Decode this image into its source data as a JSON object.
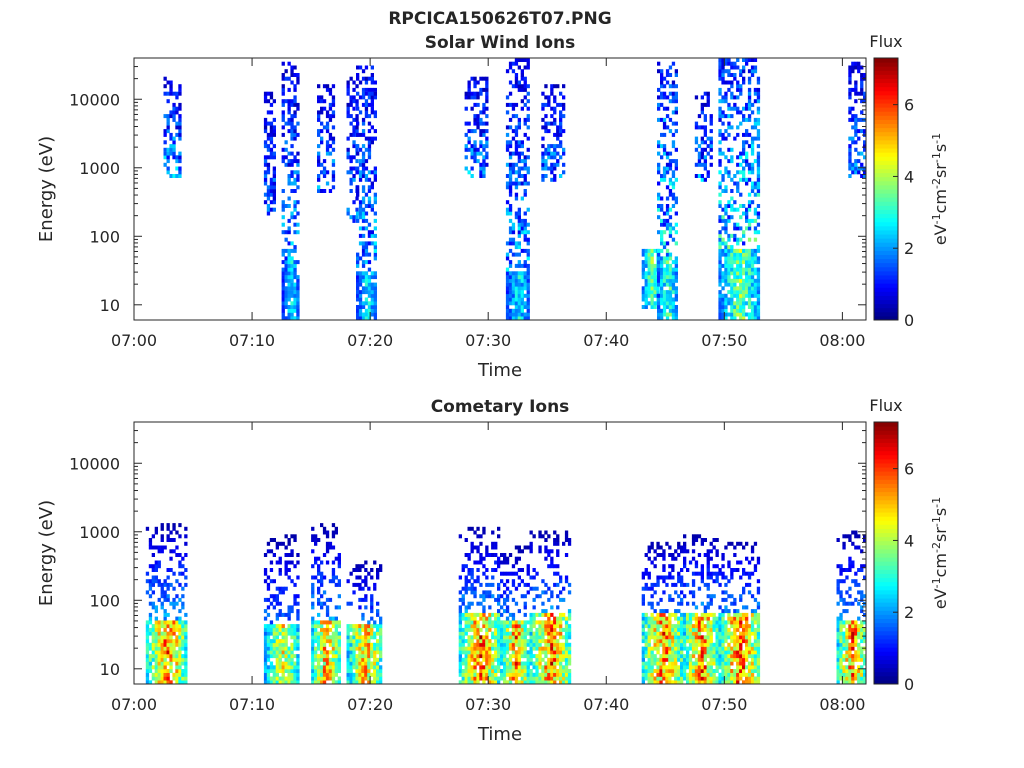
{
  "figure_title": "RPCICA150626T07.PNG",
  "chart_data": [
    {
      "type": "heatmap",
      "title": "Solar Wind Ions",
      "xlabel": "Time",
      "ylabel": "Energy (eV)",
      "yscale": "log",
      "ylim": [
        6,
        40000
      ],
      "xlim": [
        "07:00",
        "08:02"
      ],
      "xticks": [
        "07:00",
        "07:10",
        "07:20",
        "07:30",
        "07:40",
        "07:50",
        "08:00"
      ],
      "yticks": [
        "10",
        "100",
        "1000",
        "10000"
      ],
      "colorbar": {
        "title": "Flux",
        "label": "eV-1cm-2sr-1s-1",
        "range": [
          0,
          7.3
        ],
        "ticks": [
          "0",
          "2",
          "4",
          "6"
        ],
        "colormap": "jet"
      },
      "clusters": [
        {
          "t_start": "07:02.5",
          "t_end": "07:04",
          "e_min": 700,
          "e_max": 20000,
          "max_flux": 3.0,
          "hot_below": 0
        },
        {
          "t_start": "07:11",
          "t_end": "07:12",
          "e_min": 200,
          "e_max": 12000,
          "max_flux": 2.4,
          "hot_below": 0
        },
        {
          "t_start": "07:12.5",
          "t_end": "07:14",
          "e_min": 6,
          "e_max": 35000,
          "max_flux": 3.2,
          "hot_below": 40
        },
        {
          "t_start": "07:15.5",
          "t_end": "07:17",
          "e_min": 400,
          "e_max": 15000,
          "max_flux": 2.8,
          "hot_below": 0
        },
        {
          "t_start": "07:18",
          "t_end": "07:19",
          "e_min": 150,
          "e_max": 20000,
          "max_flux": 2.6,
          "hot_below": 0
        },
        {
          "t_start": "07:18.8",
          "t_end": "07:20.5",
          "e_min": 6,
          "e_max": 30000,
          "max_flux": 3.4,
          "hot_below": 30
        },
        {
          "t_start": "07:28",
          "t_end": "07:30",
          "e_min": 700,
          "e_max": 20000,
          "max_flux": 2.8,
          "hot_below": 0
        },
        {
          "t_start": "07:31.5",
          "t_end": "07:33.5",
          "e_min": 6,
          "e_max": 40000,
          "max_flux": 3.4,
          "hot_below": 30
        },
        {
          "t_start": "07:34.5",
          "t_end": "07:36.5",
          "e_min": 600,
          "e_max": 15000,
          "max_flux": 2.8,
          "hot_below": 0
        },
        {
          "t_start": "07:43",
          "t_end": "07:44.5",
          "e_min": 8,
          "e_max": 60,
          "max_flux": 4.6,
          "hot_below": 60
        },
        {
          "t_start": "07:44.3",
          "t_end": "07:46",
          "e_min": 6,
          "e_max": 35000,
          "max_flux": 4.2,
          "hot_below": 50
        },
        {
          "t_start": "07:47.5",
          "t_end": "07:49",
          "e_min": 600,
          "e_max": 12000,
          "max_flux": 2.8,
          "hot_below": 0
        },
        {
          "t_start": "07:49.5",
          "t_end": "07:53",
          "e_min": 6,
          "e_max": 40000,
          "max_flux": 4.6,
          "hot_below": 60
        },
        {
          "t_start": "08:00.5",
          "t_end": "08:02",
          "e_min": 700,
          "e_max": 35000,
          "max_flux": 2.8,
          "hot_below": 0
        }
      ]
    },
    {
      "type": "heatmap",
      "title": "Cometary Ions",
      "xlabel": "Time",
      "ylabel": "Energy (eV)",
      "yscale": "log",
      "ylim": [
        6,
        40000
      ],
      "xlim": [
        "07:00",
        "08:02"
      ],
      "xticks": [
        "07:00",
        "07:10",
        "07:20",
        "07:30",
        "07:40",
        "07:50",
        "08:00"
      ],
      "yticks": [
        "10",
        "100",
        "1000",
        "10000"
      ],
      "colorbar": {
        "title": "Flux",
        "label": "eV-1cm-2sr-1s-1",
        "range": [
          0,
          7.3
        ],
        "ticks": [
          "0",
          "2",
          "4",
          "6"
        ],
        "colormap": "jet"
      },
      "clusters": [
        {
          "t_start": "07:01",
          "t_end": "07:04.5",
          "e_min": 6,
          "e_max": 1300,
          "max_flux": 7.0,
          "hot_below": 50
        },
        {
          "t_start": "07:11",
          "t_end": "07:14",
          "e_min": 6,
          "e_max": 900,
          "max_flux": 5.8,
          "hot_below": 40
        },
        {
          "t_start": "07:15",
          "t_end": "07:17.5",
          "e_min": 6,
          "e_max": 1300,
          "max_flux": 6.8,
          "hot_below": 50
        },
        {
          "t_start": "07:18",
          "t_end": "07:21",
          "e_min": 6,
          "e_max": 350,
          "max_flux": 6.6,
          "hot_below": 40
        },
        {
          "t_start": "07:27.5",
          "t_end": "07:31",
          "e_min": 6,
          "e_max": 1100,
          "max_flux": 7.2,
          "hot_below": 60
        },
        {
          "t_start": "07:31",
          "t_end": "07:33.5",
          "e_min": 6,
          "e_max": 600,
          "max_flux": 6.8,
          "hot_below": 50
        },
        {
          "t_start": "07:33.5",
          "t_end": "07:37",
          "e_min": 6,
          "e_max": 1000,
          "max_flux": 7.3,
          "hot_below": 60
        },
        {
          "t_start": "07:43",
          "t_end": "07:46.5",
          "e_min": 6,
          "e_max": 700,
          "max_flux": 7.0,
          "hot_below": 60
        },
        {
          "t_start": "07:46.5",
          "t_end": "07:49.5",
          "e_min": 6,
          "e_max": 900,
          "max_flux": 7.2,
          "hot_below": 60
        },
        {
          "t_start": "07:49.5",
          "t_end": "07:53",
          "e_min": 6,
          "e_max": 700,
          "max_flux": 7.3,
          "hot_below": 60
        },
        {
          "t_start": "07:59.5",
          "t_end": "08:02",
          "e_min": 6,
          "e_max": 1000,
          "max_flux": 7.0,
          "hot_below": 50
        }
      ]
    }
  ]
}
